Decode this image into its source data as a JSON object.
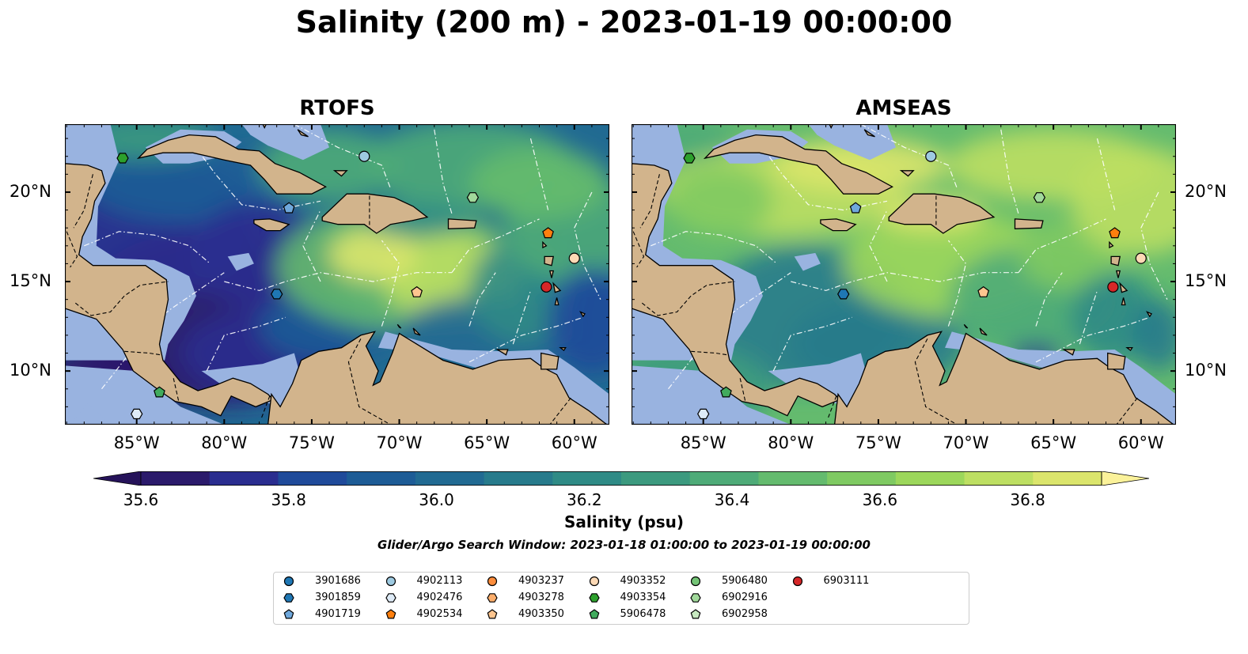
{
  "title": "Salinity (200 m) - 2023-01-19 00:00:00",
  "panels": [
    {
      "title": "RTOFS"
    },
    {
      "title": "AMSEAS"
    }
  ],
  "lon_ticks": [
    "85°W",
    "80°W",
    "75°W",
    "70°W",
    "65°W",
    "60°W"
  ],
  "lat_ticks": [
    "20°N",
    "15°N",
    "10°N"
  ],
  "colorbar": {
    "label": "Salinity (psu)",
    "ticks": [
      "35.6",
      "35.8",
      "36.0",
      "36.2",
      "36.4",
      "36.6",
      "36.8"
    ],
    "min": 35.6,
    "max": 36.9,
    "step": 0.1,
    "colors": [
      "#2b1a6b",
      "#2a2d8f",
      "#1f4a9a",
      "#1d5c96",
      "#216a92",
      "#277b8c",
      "#2f8b86",
      "#3c9a7f",
      "#4eab78",
      "#64bb6e",
      "#7fca62",
      "#9cd75b",
      "#bddf62",
      "#dbe56c"
    ],
    "under_color": "#26135a",
    "over_color": "#fbf29a"
  },
  "subtitle": "Glider/Argo Search Window: 2023-01-18 01:00:00 to 2023-01-19 00:00:00",
  "colors": {
    "land": "#d2b48c",
    "shallow_water": "#99b3e0"
  },
  "legend": [
    {
      "id": "3901686",
      "marker": "circle",
      "color": "#1f77b4"
    },
    {
      "id": "3901859",
      "marker": "hexagon",
      "color": "#1f77b4"
    },
    {
      "id": "4901719",
      "marker": "pentagon",
      "color": "#6fa8dc"
    },
    {
      "id": "4902113",
      "marker": "circle",
      "color": "#9ecae1"
    },
    {
      "id": "4902476",
      "marker": "hexagon",
      "color": "#deebf7"
    },
    {
      "id": "4902534",
      "marker": "pentagon",
      "color": "#ff7f0e"
    },
    {
      "id": "4903237",
      "marker": "circle",
      "color": "#fd8d3c"
    },
    {
      "id": "4903278",
      "marker": "hexagon",
      "color": "#fdae6b"
    },
    {
      "id": "4903350",
      "marker": "pentagon",
      "color": "#fdc58f"
    },
    {
      "id": "4903352",
      "marker": "circle",
      "color": "#fdd9b5"
    },
    {
      "id": "4903354",
      "marker": "hexagon",
      "color": "#2ca02c"
    },
    {
      "id": "5906478",
      "marker": "pentagon",
      "color": "#41ab5d"
    },
    {
      "id": "5906480",
      "marker": "circle",
      "color": "#74c476"
    },
    {
      "id": "6902916",
      "marker": "hexagon",
      "color": "#a1d99b"
    },
    {
      "id": "6902958",
      "marker": "pentagon",
      "color": "#c7e9c0"
    },
    {
      "id": "6903111",
      "marker": "circle",
      "color": "#d62728"
    }
  ],
  "floats": [
    {
      "id": "5906478",
      "lon": -83.7,
      "lat": 8.8
    },
    {
      "id": "4902476",
      "lon": -85.0,
      "lat": 7.6
    },
    {
      "id": "4903354",
      "lon": -85.8,
      "lat": 21.9
    },
    {
      "id": "4902113",
      "lon": -72.0,
      "lat": 22.0
    },
    {
      "id": "4901719",
      "lon": -76.3,
      "lat": 19.1
    },
    {
      "id": "3901859",
      "lon": -77.0,
      "lat": 14.3
    },
    {
      "id": "6902916",
      "lon": -65.8,
      "lat": 19.7
    },
    {
      "id": "4903350",
      "lon": -69.0,
      "lat": 14.4
    },
    {
      "id": "4902534",
      "lon": -61.5,
      "lat": 17.7
    },
    {
      "id": "4903352",
      "lon": -60.0,
      "lat": 16.3
    },
    {
      "id": "6903111",
      "lon": -61.6,
      "lat": 14.7
    }
  ]
}
